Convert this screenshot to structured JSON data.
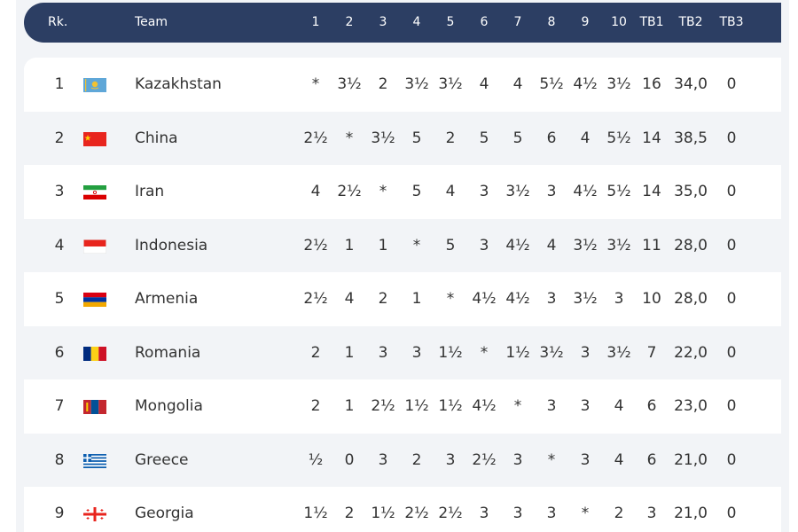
{
  "header": {
    "rank": "Rk.",
    "team": "Team",
    "cols": [
      "1",
      "2",
      "3",
      "4",
      "5",
      "6",
      "7",
      "8",
      "9",
      "10"
    ],
    "tb1": "TB1",
    "tb2": "TB2",
    "tb3": "TB3"
  },
  "rows": [
    {
      "rank": "1",
      "team": "Kazakhstan",
      "flag": "kazakhstan-flag-icon",
      "scores": [
        "*",
        "3½",
        "2",
        "3½",
        "3½",
        "4",
        "4",
        "5½",
        "4½",
        "3½"
      ],
      "tb1": "16",
      "tb2": "34,0",
      "tb3": "0"
    },
    {
      "rank": "2",
      "team": "China",
      "flag": "china-flag-icon",
      "scores": [
        "2½",
        "*",
        "3½",
        "5",
        "2",
        "5",
        "5",
        "6",
        "4",
        "5½"
      ],
      "tb1": "14",
      "tb2": "38,5",
      "tb3": "0"
    },
    {
      "rank": "3",
      "team": "Iran",
      "flag": "iran-flag-icon",
      "scores": [
        "4",
        "2½",
        "*",
        "5",
        "4",
        "3",
        "3½",
        "3",
        "4½",
        "5½"
      ],
      "tb1": "14",
      "tb2": "35,0",
      "tb3": "0"
    },
    {
      "rank": "4",
      "team": "Indonesia",
      "flag": "indonesia-flag-icon",
      "scores": [
        "2½",
        "1",
        "1",
        "*",
        "5",
        "3",
        "4½",
        "4",
        "3½",
        "3½"
      ],
      "tb1": "11",
      "tb2": "28,0",
      "tb3": "0"
    },
    {
      "rank": "5",
      "team": "Armenia",
      "flag": "armenia-flag-icon",
      "scores": [
        "2½",
        "4",
        "2",
        "1",
        "*",
        "4½",
        "4½",
        "3",
        "3½",
        "3"
      ],
      "tb1": "10",
      "tb2": "28,0",
      "tb3": "0"
    },
    {
      "rank": "6",
      "team": "Romania",
      "flag": "romania-flag-icon",
      "scores": [
        "2",
        "1",
        "3",
        "3",
        "1½",
        "*",
        "1½",
        "3½",
        "3",
        "3½"
      ],
      "tb1": "7",
      "tb2": "22,0",
      "tb3": "0"
    },
    {
      "rank": "7",
      "team": "Mongolia",
      "flag": "mongolia-flag-icon",
      "scores": [
        "2",
        "1",
        "2½",
        "1½",
        "1½",
        "4½",
        "*",
        "3",
        "3",
        "4"
      ],
      "tb1": "6",
      "tb2": "23,0",
      "tb3": "0"
    },
    {
      "rank": "8",
      "team": "Greece",
      "flag": "greece-flag-icon",
      "scores": [
        "½",
        "0",
        "3",
        "2",
        "3",
        "2½",
        "3",
        "*",
        "3",
        "4"
      ],
      "tb1": "6",
      "tb2": "21,0",
      "tb3": "0"
    },
    {
      "rank": "9",
      "team": "Georgia",
      "flag": "georgia-flag-icon",
      "scores": [
        "1½",
        "2",
        "1½",
        "2½",
        "2½",
        "3",
        "3",
        "3",
        "*",
        "2"
      ],
      "tb1": "3",
      "tb2": "21,0",
      "tb3": "0"
    }
  ],
  "colors": {
    "header_bg": "#2c3e63",
    "row_alt_bg": "#f2f4f7",
    "text": "#333333"
  }
}
